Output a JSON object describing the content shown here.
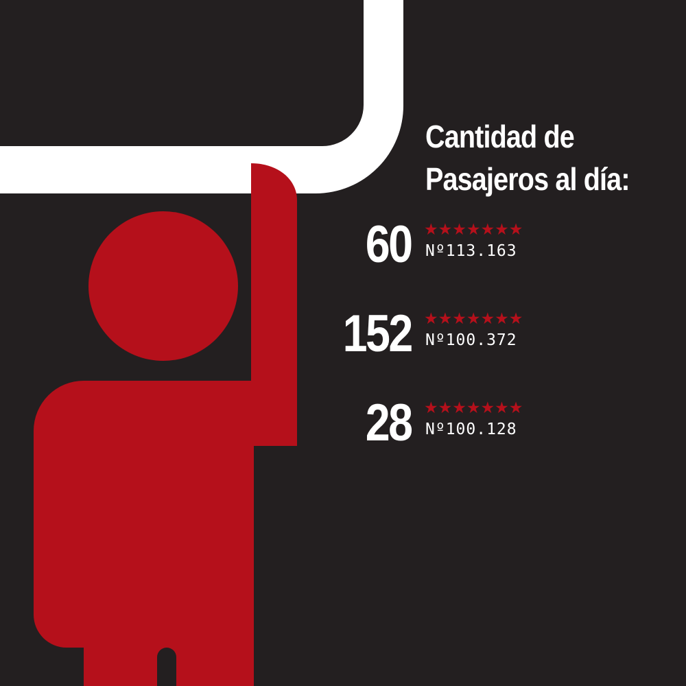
{
  "title": {
    "line1": "Cantidad de",
    "line2": "Pasajeros al día:"
  },
  "stats": [
    {
      "number": "60",
      "stars": "★★★★★★★",
      "code": "Nº113.163"
    },
    {
      "number": "152",
      "stars": "★★★★★★★",
      "code": "Nº100.372"
    },
    {
      "number": "28",
      "stars": "★★★★★★★",
      "code": "Nº100.128"
    }
  ],
  "colors": {
    "background": "#231f20",
    "figure": "#b5101b",
    "rail": "#ffffff",
    "text": "#ffffff"
  },
  "icons": {
    "figure": "standing-passenger-holding-rail-icon",
    "rail": "grab-rail"
  }
}
